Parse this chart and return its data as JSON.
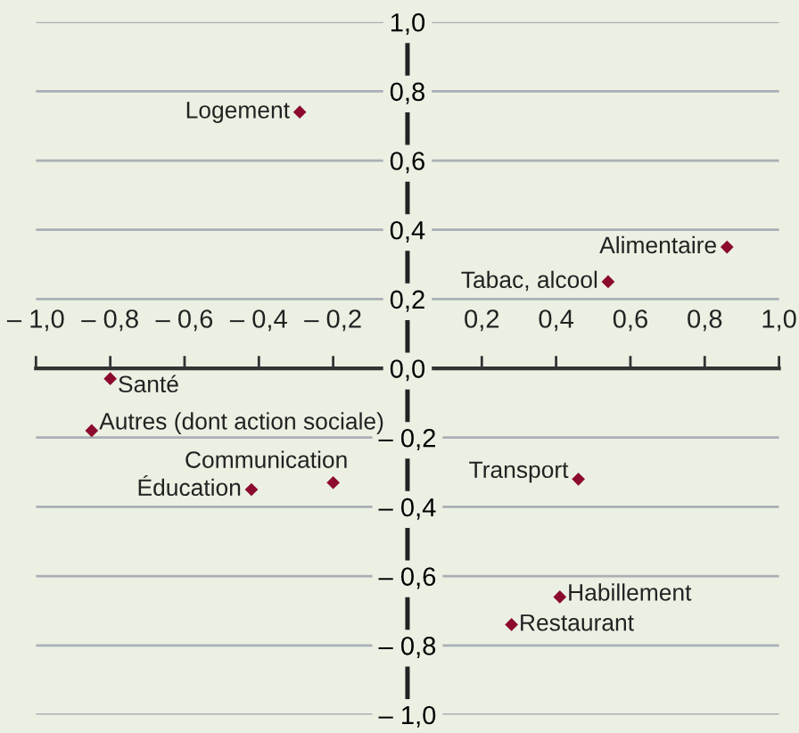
{
  "chart_data": {
    "type": "scatter",
    "x": [
      -0.29,
      0.86,
      0.54,
      -0.8,
      -0.85,
      -0.2,
      -0.42,
      0.46,
      0.41,
      0.28
    ],
    "values": [
      0.74,
      0.35,
      0.25,
      -0.03,
      -0.18,
      -0.33,
      -0.35,
      -0.32,
      -0.66,
      -0.74
    ],
    "color": "#8b0a2e",
    "marker": "diamond",
    "annotations": [
      {
        "text": "Logement",
        "x": -0.29,
        "y": 0.74
      },
      {
        "text": "Alimentaire",
        "x": 0.86,
        "y": 0.35
      },
      {
        "text": "Tabac, alcool",
        "x": 0.54,
        "y": 0.25
      },
      {
        "text": "Santé",
        "x": -0.8,
        "y": -0.03
      },
      {
        "text": "Autres (dont action sociale)",
        "x": -0.85,
        "y": -0.18
      },
      {
        "text": "Communication",
        "x": -0.2,
        "y": -0.33
      },
      {
        "text": "Éducation",
        "x": -0.42,
        "y": -0.35
      },
      {
        "text": "Transport",
        "x": 0.46,
        "y": -0.32
      },
      {
        "text": "Habillement",
        "x": 0.41,
        "y": -0.66
      },
      {
        "text": "Restaurant",
        "x": 0.28,
        "y": -0.74
      }
    ],
    "xlim": [
      -1.0,
      1.0
    ],
    "ylim": [
      -1.0,
      1.0
    ],
    "xticks": [
      {
        "value": -1.0,
        "label": "– 1,0"
      },
      {
        "value": -0.8,
        "label": "– 0,8"
      },
      {
        "value": -0.6,
        "label": "– 0,6"
      },
      {
        "value": -0.4,
        "label": "– 0,4"
      },
      {
        "value": -0.2,
        "label": "– 0,2"
      },
      {
        "value": 0.2,
        "label": "0,2"
      },
      {
        "value": 0.4,
        "label": "0,4"
      },
      {
        "value": 0.6,
        "label": "0,6"
      },
      {
        "value": 0.8,
        "label": "0,8"
      },
      {
        "value": 1.0,
        "label": "1,0"
      }
    ],
    "yticks": [
      {
        "value": -1.0,
        "label": "– 1,0"
      },
      {
        "value": -0.8,
        "label": "– 0,8"
      },
      {
        "value": -0.6,
        "label": "– 0,6"
      },
      {
        "value": -0.4,
        "label": "– 0,4"
      },
      {
        "value": -0.2,
        "label": "– 0,2"
      },
      {
        "value": 0.0,
        "label": "0,0"
      },
      {
        "value": 0.2,
        "label": "0,2"
      },
      {
        "value": 0.4,
        "label": "0,4"
      },
      {
        "value": 0.6,
        "label": "0,6"
      },
      {
        "value": 0.8,
        "label": "0,8"
      },
      {
        "value": 1.0,
        "label": "1,0"
      }
    ],
    "grid": "y"
  }
}
